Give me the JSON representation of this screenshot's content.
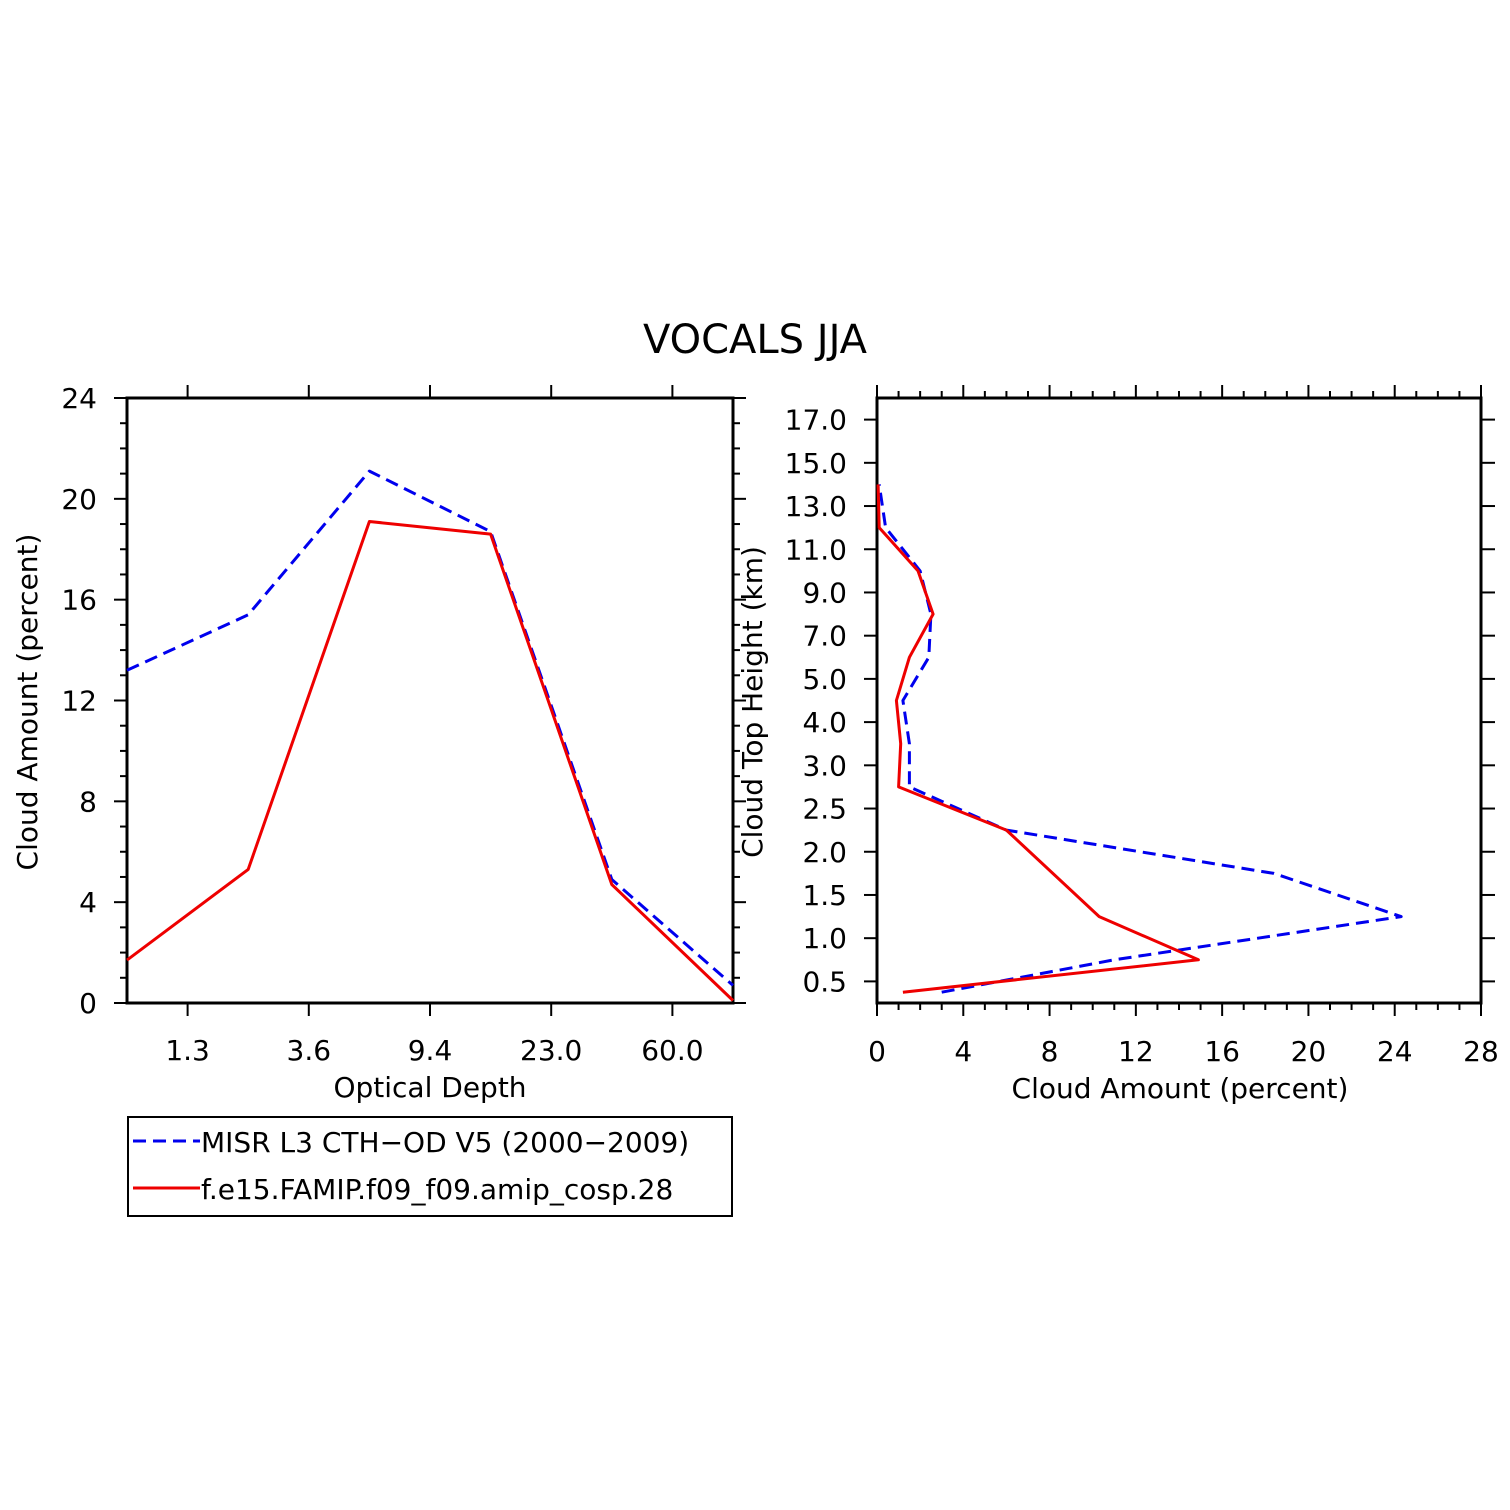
{
  "title": "VOCALS JJA",
  "colors": {
    "series_1": "#0000ee",
    "series_2": "#ee0000",
    "axis": "#000000"
  },
  "legend": {
    "placement": "below-left",
    "entries": [
      {
        "label": "MISR L3 CTH−OD V5 (2000−2009)",
        "color": "#0000ee",
        "style": "dashed"
      },
      {
        "label": "f.e15.FAMIP.f09_f09.amip_cosp.28",
        "color": "#ee0000",
        "style": "solid"
      }
    ]
  },
  "chart_data": [
    {
      "type": "line",
      "xlabel": "Optical Depth",
      "ylabel": "Cloud Amount (percent)",
      "ylim": [
        0,
        24
      ],
      "yticks": [
        "0",
        "4",
        "8",
        "12",
        "16",
        "20",
        "24"
      ],
      "xticks": [
        "1.3",
        "3.6",
        "9.4",
        "23.0",
        "60.0"
      ],
      "x": [
        0,
        1,
        2,
        3,
        4,
        5
      ],
      "grid": false,
      "series": [
        {
          "name": "MISR L3 CTH−OD V5 (2000−2009)",
          "color": "#0000ee",
          "style": "dashed",
          "values": [
            13.2,
            15.4,
            21.1,
            18.7,
            4.9,
            0.7
          ]
        },
        {
          "name": "f.e15.FAMIP.f09_f09.amip_cosp.28",
          "color": "#ee0000",
          "style": "solid",
          "values": [
            1.7,
            5.3,
            19.1,
            18.6,
            4.7,
            0.1
          ]
        }
      ]
    },
    {
      "type": "line",
      "xlabel": "Cloud Amount (percent)",
      "ylabel": "Cloud Top Height (km)",
      "xlim": [
        0,
        28
      ],
      "xticks": [
        "0",
        "4",
        "8",
        "12",
        "16",
        "20",
        "24",
        "28"
      ],
      "ycategories": [
        "0.5",
        "1.0",
        "1.5",
        "2.0",
        "2.5",
        "3.0",
        "4.0",
        "5.0",
        "7.0",
        "9.0",
        "11.0",
        "13.0",
        "15.0",
        "17.0"
      ],
      "grid": false,
      "series": [
        {
          "name": "MISR L3 CTH−OD V5 (2000−2009)",
          "color": "#0000ee",
          "style": "dashed",
          "x": [
            3.0,
            11.0,
            24.3,
            18.4,
            6.0,
            1.5,
            1.5,
            1.2,
            2.4,
            2.5,
            2.0,
            0.4,
            0.1
          ],
          "y": [
            0.25,
            0.75,
            1.25,
            1.75,
            2.25,
            2.75,
            3.5,
            4.5,
            6.0,
            8.0,
            10.0,
            12.0,
            14.0
          ]
        },
        {
          "name": "f.e15.FAMIP.f09_f09.amip_cosp.28",
          "color": "#ee0000",
          "style": "solid",
          "x": [
            1.2,
            14.9,
            10.3,
            6.0,
            1.0,
            1.1,
            0.9,
            1.5,
            2.6,
            1.9,
            0.1,
            0.05
          ],
          "y": [
            0.25,
            0.75,
            1.25,
            2.25,
            2.75,
            3.5,
            4.5,
            6.0,
            8.0,
            10.0,
            12.0,
            14.0
          ]
        }
      ]
    }
  ]
}
